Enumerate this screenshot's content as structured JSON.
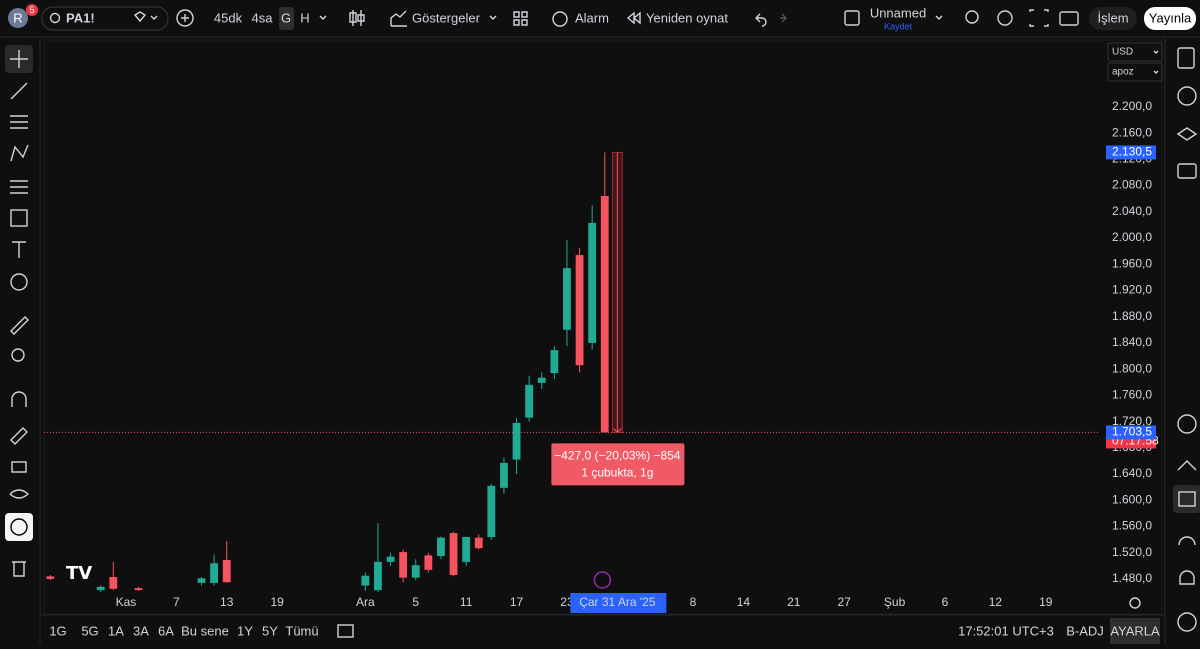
{
  "toolbar": {
    "avatar": "R",
    "notifications": "5",
    "symbol": "PA1!",
    "intervals": [
      "45dk",
      "4sa",
      "G",
      "H"
    ],
    "indicators": "Göstergeler",
    "alarm": "Alarm",
    "replay": "Yeniden oynat",
    "layout_name": "Unnamed",
    "save": "Kaydet",
    "trade": "İşlem",
    "publish": "Yayınla"
  },
  "price_axis": {
    "currency": "USD",
    "unit": "apoz"
  },
  "bottom_bar": {
    "ranges": [
      "1G",
      "5G",
      "1A",
      "3A",
      "6A",
      "Bu sene",
      "1Y",
      "5Y",
      "Tümü"
    ],
    "clock": "17:52:01 UTC+3",
    "adjustment": "B-ADJ",
    "settings": "AYARLA"
  },
  "chart_data": {
    "type": "candlestick",
    "x": [
      0,
      4,
      5,
      7,
      12,
      13,
      14,
      25,
      26,
      27,
      28,
      29,
      30,
      31,
      32,
      33,
      34,
      35,
      36,
      37,
      38,
      39,
      40,
      41,
      42,
      43,
      44
    ],
    "open": [
      1484,
      1463,
      1483,
      1466,
      1474,
      1474,
      1509,
      1470,
      1463,
      1506,
      1521,
      1482,
      1516,
      1515,
      1550,
      1506,
      1543,
      1544,
      1619,
      1662,
      1726,
      1779,
      1794,
      1860,
      1974,
      1840,
      2064
    ],
    "high": [
      1486,
      1470,
      1506,
      1468,
      1483,
      1517,
      1538,
      1490,
      1565,
      1520,
      1525,
      1510,
      1520,
      1545,
      1552,
      1545,
      1548,
      1625,
      1665,
      1725,
      1790,
      1795,
      1835,
      1997,
      1985,
      2050,
      2130.5
    ],
    "low": [
      1478,
      1460,
      1463,
      1462,
      1470,
      1470,
      1475,
      1462,
      1460,
      1500,
      1475,
      1478,
      1490,
      1510,
      1484,
      1500,
      1525,
      1540,
      1610,
      1640,
      1720,
      1770,
      1785,
      1835,
      1795,
      1830,
      1703.5
    ],
    "close": [
      1480,
      1468,
      1465,
      1463,
      1481,
      1504,
      1475,
      1485,
      1506,
      1514,
      1482,
      1501,
      1494,
      1543,
      1486,
      1544,
      1527,
      1622,
      1657,
      1718,
      1776,
      1787,
      1829,
      1954,
      1806,
      2023,
      1703.5
    ],
    "up_color": "#22ab94",
    "down_color": "#f7525f",
    "xlim": [
      -0.5,
      83.3
    ],
    "ylim": [
      1458.6,
      2305
    ],
    "xticks": [
      {
        "value": 6,
        "label": "Kas"
      },
      {
        "value": 10,
        "label": "7"
      },
      {
        "value": 14,
        "label": "13"
      },
      {
        "value": 18,
        "label": "19"
      },
      {
        "value": 25,
        "label": "Ara"
      },
      {
        "value": 29,
        "label": "5"
      },
      {
        "value": 33,
        "label": "11"
      },
      {
        "value": 37,
        "label": "17"
      },
      {
        "value": 41,
        "label": "23"
      },
      {
        "value": 45,
        "label": "Çar 31 Ara '25"
      },
      {
        "value": 51,
        "label": "8"
      },
      {
        "value": 55,
        "label": "14"
      },
      {
        "value": 59,
        "label": "21"
      },
      {
        "value": 63,
        "label": "27"
      },
      {
        "value": 67,
        "label": "Şub"
      },
      {
        "value": 71,
        "label": "6"
      },
      {
        "value": 75,
        "label": "12"
      },
      {
        "value": 79,
        "label": "19"
      }
    ],
    "yticks": [
      {
        "value": 1480,
        "label": "1.480,0"
      },
      {
        "value": 1520,
        "label": "1.520,0"
      },
      {
        "value": 1560,
        "label": "1.560,0"
      },
      {
        "value": 1600,
        "label": "1.600,0"
      },
      {
        "value": 1640,
        "label": "1.640,0"
      },
      {
        "value": 1680,
        "label": "1.680,0"
      },
      {
        "value": 1720,
        "label": "1.720,0"
      },
      {
        "value": 1760,
        "label": "1.760,0"
      },
      {
        "value": 1800,
        "label": "1.800,0"
      },
      {
        "value": 1840,
        "label": "1.840,0"
      },
      {
        "value": 1880,
        "label": "1.880,0"
      },
      {
        "value": 1920,
        "label": "1.920,0"
      },
      {
        "value": 1960,
        "label": "1.960,0"
      },
      {
        "value": 2000,
        "label": "2.000,0"
      },
      {
        "value": 2040,
        "label": "2.040,0"
      },
      {
        "value": 2080,
        "label": "2.080,0"
      },
      {
        "value": 2120,
        "label": "2.120,0"
      },
      {
        "value": 2160,
        "label": "2.160,0"
      },
      {
        "value": 2200,
        "label": "2.200,0"
      }
    ],
    "grid": false,
    "crosshair_x": 45,
    "high_label": {
      "value": 2130.5,
      "label": "2.130,5"
    },
    "last_price": {
      "value": 1703.5,
      "label": "1.703,5"
    },
    "countdown": "07:17:58",
    "measure": {
      "line1": "−427,0 (−20,03%) −854",
      "line2": "1 çubukta, 1g"
    }
  }
}
